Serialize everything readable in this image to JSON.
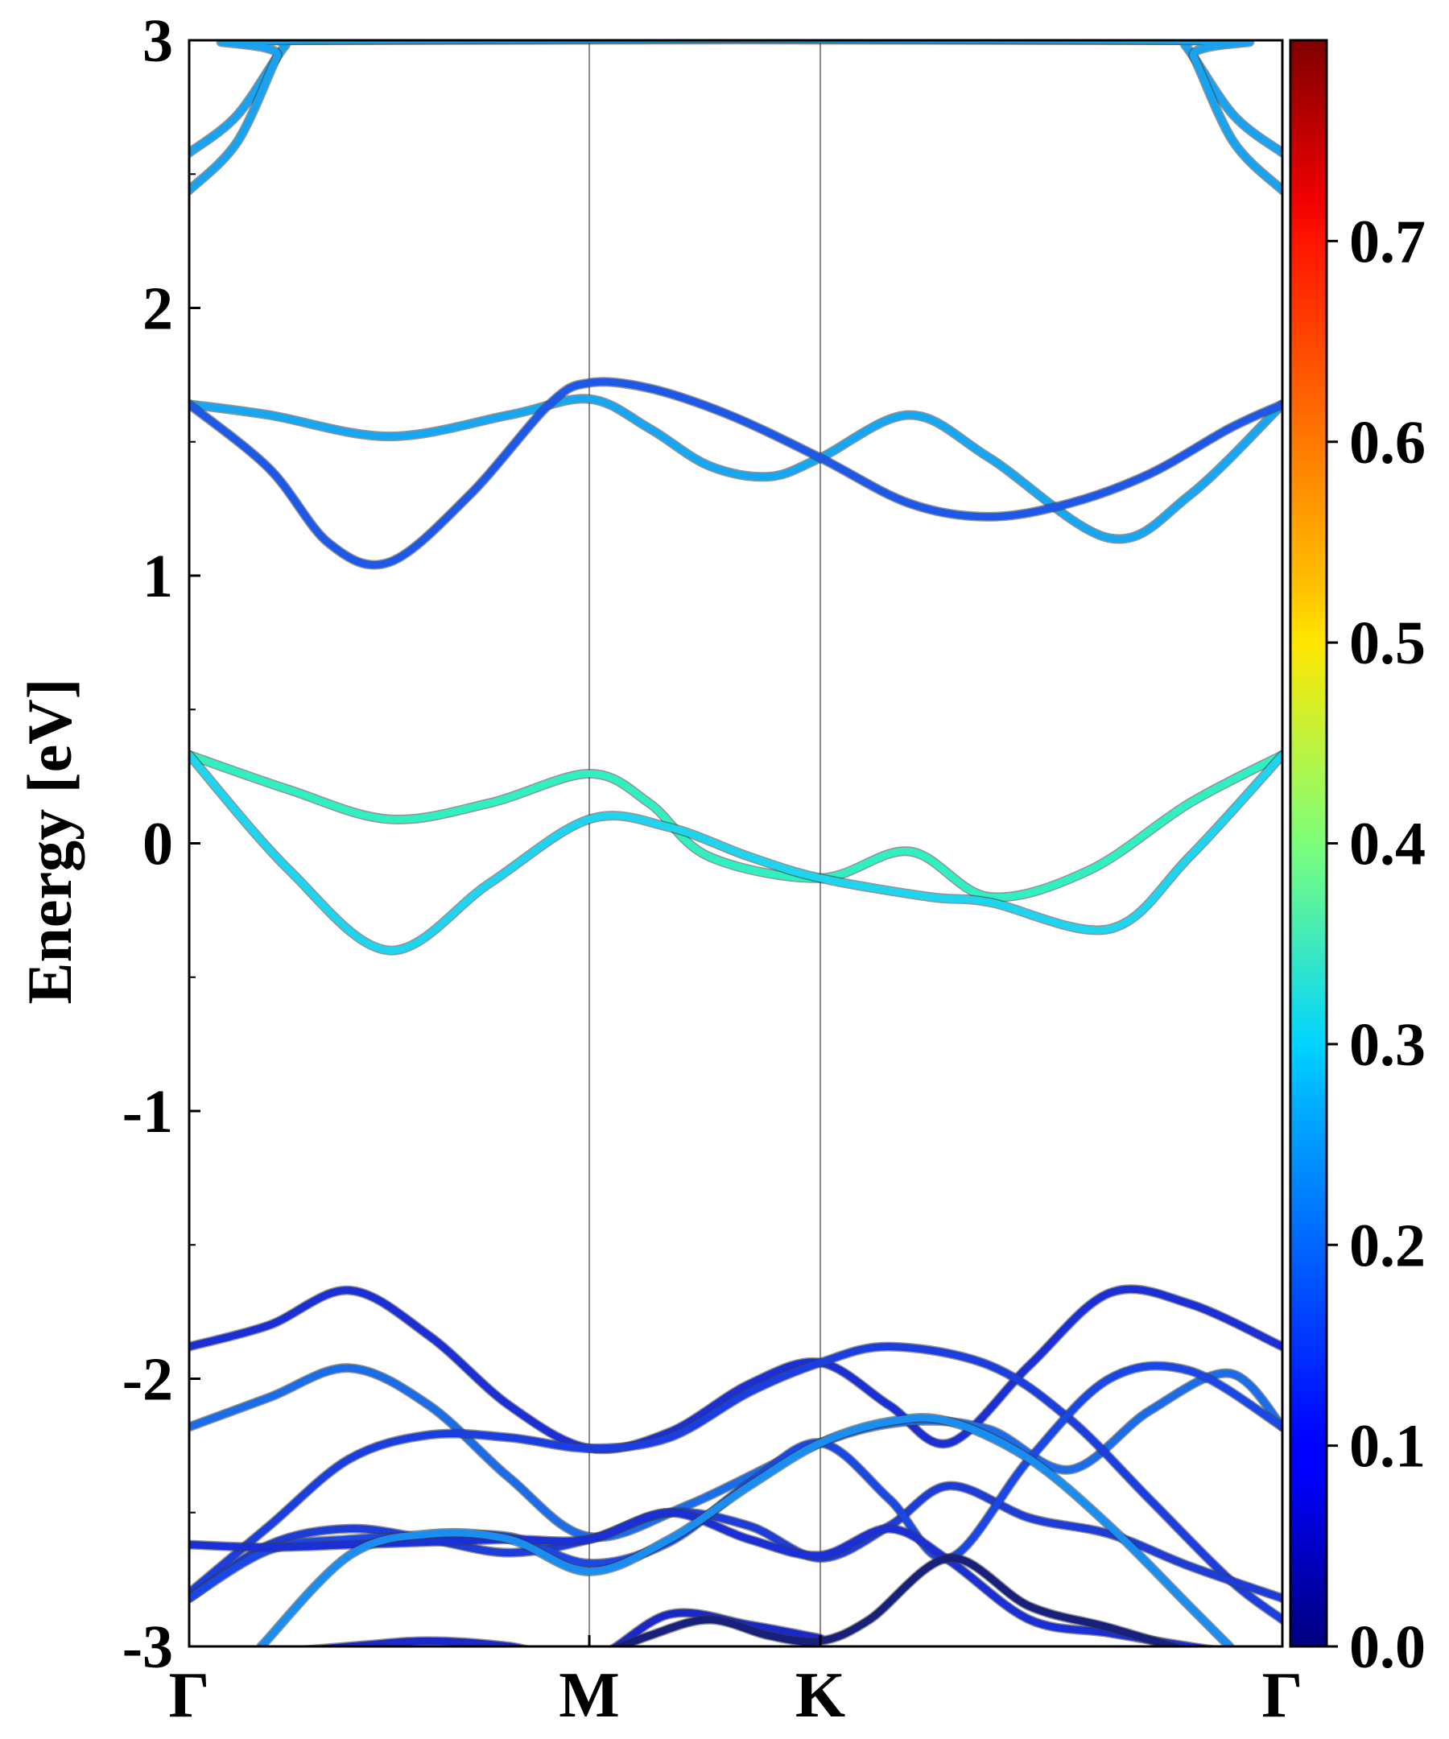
{
  "chart_data": {
    "type": "line",
    "title": "",
    "xlabel": "",
    "ylabel": "Energy [eV]",
    "ylim": [
      -3,
      3
    ],
    "yticks": [
      "-3",
      "-2",
      "-1",
      "0",
      "1",
      "2",
      "3"
    ],
    "x_path_ticks": [
      "Γ",
      "M",
      "K",
      "Γ"
    ],
    "x_path_positions": [
      0,
      1.0,
      1.5774,
      2.7321
    ],
    "grid": false,
    "legend": "none",
    "colormap": "jet",
    "colorbar": {
      "range": [
        0.0,
        0.8
      ],
      "ticks": [
        "0.0",
        "0.1",
        "0.2",
        "0.3",
        "0.4",
        "0.5",
        "0.6",
        "0.7"
      ]
    },
    "series": [
      {
        "color": "#19a2f0",
        "x": [
          0,
          0.12,
          0.24,
          0.28,
          2.45,
          2.49,
          2.61,
          2.7321
        ],
        "y": [
          2.58,
          2.72,
          2.98,
          3.0,
          3.0,
          2.98,
          2.72,
          2.58
        ]
      },
      {
        "color": "#19a2f0",
        "x": [
          0,
          0.12,
          0.22,
          0.25,
          2.48,
          2.51,
          2.61,
          2.7321
        ],
        "y": [
          2.44,
          2.62,
          2.94,
          3.0,
          3.0,
          2.94,
          2.62,
          2.44
        ]
      },
      {
        "color": "#17a6f2",
        "x": [
          0,
          0.2,
          0.5,
          0.8,
          1.0,
          1.15,
          1.3,
          1.45,
          1.5774,
          1.8,
          2.0,
          2.3,
          2.5,
          2.7321
        ],
        "y": [
          1.64,
          1.6,
          1.52,
          1.6,
          1.66,
          1.55,
          1.41,
          1.37,
          1.44,
          1.6,
          1.44,
          1.14,
          1.3,
          1.64
        ]
      },
      {
        "color": "#1d58e8",
        "x": [
          0,
          0.2,
          0.35,
          0.5,
          0.7,
          0.9,
          1.0,
          1.15,
          1.35,
          1.5774,
          1.8,
          2.0,
          2.2,
          2.4,
          2.6,
          2.7321
        ],
        "y": [
          1.64,
          1.4,
          1.12,
          1.05,
          1.3,
          1.64,
          1.72,
          1.7,
          1.6,
          1.44,
          1.27,
          1.22,
          1.27,
          1.38,
          1.55,
          1.64
        ]
      },
      {
        "color": "#30f0c2",
        "x": [
          0,
          0.25,
          0.5,
          0.75,
          1.0,
          1.15,
          1.3,
          1.5774,
          1.8,
          2.0,
          2.25,
          2.5,
          2.7321
        ],
        "y": [
          0.33,
          0.2,
          0.09,
          0.15,
          0.26,
          0.15,
          -0.05,
          -0.13,
          -0.03,
          -0.2,
          -0.1,
          0.15,
          0.33
        ]
      },
      {
        "color": "#1fd4ee",
        "x": [
          0,
          0.25,
          0.5,
          0.75,
          1.0,
          1.2,
          1.4,
          1.5774,
          1.85,
          2.0,
          2.3,
          2.5,
          2.7321
        ],
        "y": [
          0.33,
          -0.1,
          -0.4,
          -0.15,
          0.09,
          0.06,
          -0.05,
          -0.13,
          -0.2,
          -0.22,
          -0.32,
          -0.05,
          0.33
        ]
      },
      {
        "color": "#1a2fd6",
        "x": [
          0,
          0.2,
          0.4,
          0.6,
          0.8,
          1.0,
          1.2,
          1.4,
          1.5774,
          1.75,
          1.9,
          2.1,
          2.3,
          2.5,
          2.7321
        ],
        "y": [
          -1.88,
          -1.8,
          -1.67,
          -1.84,
          -2.1,
          -2.26,
          -2.2,
          -2.02,
          -1.94,
          -2.1,
          -2.24,
          -1.95,
          -1.68,
          -1.72,
          -1.88
        ]
      },
      {
        "color": "#1a6ce8",
        "x": [
          0,
          0.2,
          0.4,
          0.6,
          0.8,
          1.0,
          1.25,
          1.5774,
          1.8,
          2.0,
          2.2,
          2.4,
          2.6,
          2.7321
        ],
        "y": [
          -2.18,
          -2.07,
          -1.96,
          -2.1,
          -2.37,
          -2.59,
          -2.47,
          -2.24,
          -2.16,
          -2.19,
          -2.34,
          -2.12,
          -1.98,
          -2.18
        ]
      },
      {
        "color": "#1a3ee0",
        "x": [
          0,
          0.2,
          0.4,
          0.6,
          0.8,
          1.0,
          1.2,
          1.4,
          1.5774,
          1.75,
          2.0,
          2.2,
          2.4,
          2.6,
          2.7321
        ],
        "y": [
          -2.8,
          -2.55,
          -2.3,
          -2.21,
          -2.22,
          -2.26,
          -2.22,
          -2.05,
          -1.94,
          -1.88,
          -1.95,
          -2.15,
          -2.45,
          -2.75,
          -2.9
        ]
      },
      {
        "color": "#1d3cd8",
        "x": [
          0,
          0.2,
          0.4,
          0.6,
          0.8,
          1.0,
          1.2,
          1.4,
          1.5774,
          1.75,
          1.9,
          2.1,
          2.3,
          2.5,
          2.7321
        ],
        "y": [
          -2.82,
          -2.62,
          -2.56,
          -2.6,
          -2.65,
          -2.6,
          -2.5,
          -2.55,
          -2.67,
          -2.55,
          -2.4,
          -2.52,
          -2.58,
          -2.7,
          -2.82
        ]
      },
      {
        "color": "#1a48e6",
        "x": [
          0,
          0.2,
          0.4,
          0.6,
          0.8,
          1.0,
          1.2,
          1.4,
          1.5774,
          1.75,
          1.9,
          2.1,
          2.3,
          2.5,
          2.7321
        ],
        "y": [
          -2.82,
          -2.64,
          -2.6,
          -2.59,
          -2.59,
          -2.69,
          -2.61,
          -2.39,
          -2.24,
          -2.45,
          -2.67,
          -2.3,
          -2.0,
          -1.97,
          -2.18
        ]
      },
      {
        "color": "#1a2fd6",
        "x": [
          0,
          0.2,
          0.4,
          0.6,
          0.8,
          1.0,
          1.2,
          1.4,
          1.5774,
          1.75,
          1.9,
          2.1,
          2.3,
          2.5,
          2.7321
        ],
        "y": [
          -2.62,
          -2.63,
          -2.62,
          -2.61,
          -2.6,
          -2.6,
          -2.5,
          -2.6,
          -2.66,
          -2.56,
          -2.68,
          -2.9,
          -2.95,
          -3.0,
          -3.05
        ]
      },
      {
        "color": "#1a8ef0",
        "x": [
          0.18,
          0.4,
          0.6,
          0.8,
          1.0,
          1.2,
          1.4,
          1.5774,
          1.75,
          1.9,
          2.1,
          2.3,
          2.5,
          2.6
        ],
        "y": [
          -3.0,
          -2.66,
          -2.58,
          -2.6,
          -2.72,
          -2.6,
          -2.4,
          -2.24,
          -2.16,
          -2.16,
          -2.3,
          -2.55,
          -2.85,
          -3.0
        ]
      },
      {
        "color": "#1a28c8",
        "x": [
          0,
          0.4,
          0.6,
          0.8,
          1.0,
          1.2,
          1.4,
          1.5774
        ],
        "y": [
          -3.05,
          -3.0,
          -2.98,
          -3.0,
          -3.05,
          -2.88,
          -2.92,
          -2.97
        ]
      },
      {
        "color": "#17207a",
        "x": [
          1.0,
          1.15,
          1.3,
          1.45,
          1.5774,
          1.7,
          1.9,
          2.1,
          2.3,
          2.5
        ],
        "y": [
          -3.05,
          -2.96,
          -2.9,
          -2.96,
          -2.98,
          -2.9,
          -2.67,
          -2.85,
          -2.93,
          -3.02
        ]
      }
    ]
  }
}
